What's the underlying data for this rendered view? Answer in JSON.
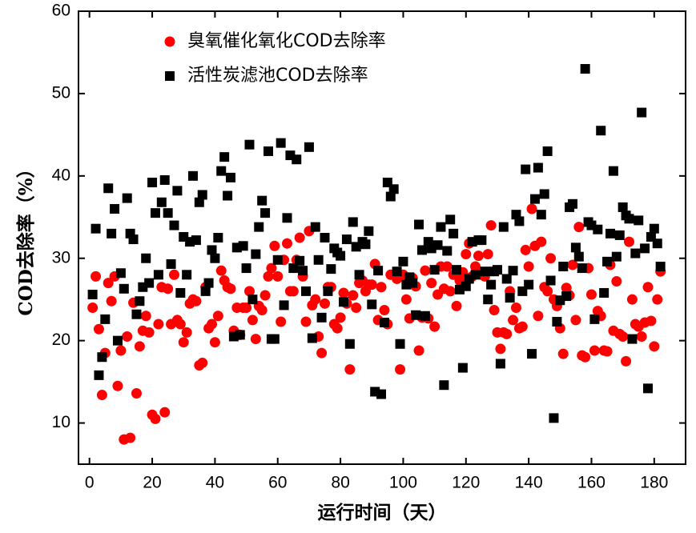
{
  "chart_data": {
    "type": "scatter",
    "x_label": "运行时间（天）",
    "y_label": "COD去除率（%）",
    "xlim": [
      -3.5,
      190
    ],
    "ylim": [
      5,
      60
    ],
    "xticks": [
      0,
      20,
      40,
      60,
      80,
      100,
      120,
      140,
      160,
      180
    ],
    "yticks": [
      10,
      20,
      30,
      40,
      50,
      60
    ],
    "legend": "upper left",
    "x": [
      1,
      2,
      3,
      4,
      5,
      6,
      7,
      8,
      9,
      10,
      11,
      12,
      13,
      14,
      15,
      16,
      17,
      18,
      19,
      20,
      21,
      22,
      23,
      24,
      25,
      26,
      27,
      28,
      29,
      30,
      31,
      32,
      33,
      34,
      35,
      36,
      37,
      38,
      39,
      40,
      41,
      42,
      43,
      44,
      45,
      46,
      47,
      48,
      49,
      50,
      51,
      52,
      53,
      54,
      55,
      56,
      57,
      58,
      59,
      60,
      61,
      62,
      63,
      64,
      65,
      66,
      67,
      68,
      69,
      70,
      71,
      72,
      73,
      74,
      75,
      76,
      77,
      78,
      79,
      80,
      81,
      82,
      83,
      84,
      85,
      86,
      87,
      88,
      89,
      90,
      91,
      92,
      93,
      94,
      95,
      96,
      97,
      98,
      99,
      100,
      101,
      102,
      103,
      104,
      105,
      106,
      107,
      108,
      109,
      110,
      111,
      112,
      113,
      114,
      115,
      116,
      117,
      118,
      119,
      120,
      121,
      122,
      123,
      124,
      125,
      126,
      127,
      128,
      129,
      130,
      131,
      132,
      133,
      134,
      135,
      136,
      137,
      138,
      139,
      140,
      141,
      142,
      143,
      144,
      145,
      146,
      147,
      148,
      149,
      150,
      151,
      152,
      153,
      154,
      155,
      156,
      157,
      158,
      159,
      160,
      161,
      162,
      163,
      164,
      165,
      166,
      167,
      168,
      169,
      170,
      171,
      172,
      173,
      174,
      175,
      176,
      177,
      178,
      179,
      180,
      181,
      182
    ],
    "series": [
      {
        "name": "臭氧催化氧化COD去除率",
        "color": "#ff0000",
        "marker": "circle",
        "values": [
          24,
          27.8,
          21.4,
          13.4,
          18.5,
          27,
          24.8,
          27.8,
          14.5,
          18.8,
          8,
          20.5,
          8.2,
          24.6,
          13.6,
          19.3,
          21.2,
          23,
          21,
          11,
          10.5,
          22,
          26.5,
          11.3,
          26.3,
          22,
          28,
          22.5,
          22,
          19.8,
          21,
          24.5,
          25,
          24.8,
          17,
          17.3,
          26.5,
          21.5,
          22,
          19.8,
          23,
          28.5,
          27.3,
          26.5,
          26.3,
          21.2,
          24,
          20.7,
          24,
          24,
          26,
          22.5,
          20.2,
          24.2,
          23.7,
          25.5,
          27.8,
          28.8,
          31.5,
          27.8,
          22.3,
          29.8,
          31.8,
          26,
          26,
          29.8,
          32.5,
          27.8,
          22.3,
          33.3,
          24.3,
          25,
          20.5,
          18.5,
          24.5,
          26.5,
          26.5,
          22,
          21.5,
          22.8,
          25.8,
          24.5,
          16.5,
          25.5,
          24,
          27,
          27.3,
          26,
          26.8,
          26.8,
          29.3,
          22.5,
          26.5,
          23.7,
          22,
          28,
          28,
          27.5,
          16.5,
          28,
          25,
          22.7,
          27.6,
          26.6,
          18.8,
          22.8,
          28.5,
          22.7,
          27,
          21.7,
          25.6,
          29,
          26.3,
          29,
          26,
          28,
          24.2,
          27.3,
          28.3,
          30.5,
          31.8,
          27.8,
          29,
          30.3,
          28,
          27.8,
          30.5,
          34,
          23.7,
          21,
          19,
          21,
          20.8,
          26,
          22.5,
          24,
          21.5,
          21.7,
          31,
          29,
          36,
          31.5,
          23,
          32,
          26.5,
          26,
          30,
          25,
          24.2,
          21.5,
          18.4,
          26.4,
          25.5,
          29.2,
          22.5,
          33.8,
          18.2,
          18,
          28.8,
          25.6,
          18.8,
          23.6,
          23,
          18.8,
          18.7,
          29.2,
          21.2,
          27.2,
          20.8,
          20.5,
          17.5,
          32,
          25,
          22,
          21.7,
          20.5,
          22.2,
          26.5,
          22.4,
          19.3,
          25,
          28.4
        ]
      },
      {
        "name": "活性炭滤池COD去除率",
        "color": "#000000",
        "marker": "square",
        "values": [
          25.6,
          33.6,
          15.8,
          18,
          22.6,
          38.5,
          33,
          36,
          20,
          28.2,
          26.3,
          37.3,
          33,
          32.3,
          23.2,
          24.8,
          26.5,
          30,
          27,
          39.2,
          35.5,
          28,
          36.8,
          39.5,
          35.5,
          29.3,
          34,
          38.2,
          25.8,
          32.6,
          28,
          32,
          40,
          32.2,
          36.8,
          37.7,
          26,
          27,
          31,
          30,
          32.5,
          40.6,
          42.3,
          37.6,
          39.8,
          20.5,
          31.3,
          20.7,
          31.5,
          28.8,
          43.8,
          25,
          30.5,
          33.8,
          37,
          35.5,
          43,
          20.2,
          20.2,
          29.8,
          44,
          24.3,
          34.9,
          42.5,
          28.8,
          42,
          29.7,
          28.5,
          26,
          43.5,
          20.3,
          33.8,
          29.8,
          22.8,
          32.5,
          26,
          28.7,
          31.2,
          30.7,
          30.3,
          24.7,
          32.3,
          19.6,
          34.4,
          31.4,
          28,
          32,
          31.7,
          33.3,
          24.4,
          13.8,
          28.5,
          13.5,
          22.2,
          39.2,
          37.5,
          38.4,
          28.4,
          19.6,
          29.6,
          26.8,
          27.7,
          27,
          23.1,
          34.1,
          31,
          23,
          32,
          31.2,
          28.6,
          31.6,
          33.8,
          14.6,
          30.9,
          34.7,
          33,
          28.6,
          26.2,
          16.7,
          26.6,
          27.5,
          32,
          28,
          32.2,
          32.2,
          28.4,
          25,
          26.8,
          28.4,
          28.6,
          17.2,
          33.8,
          27.5,
          25.2,
          28.5,
          35.3,
          34.5,
          26,
          40.8,
          26.8,
          18.4,
          37.2,
          41,
          35.3,
          37.8,
          43,
          27.3,
          10.6,
          22.3,
          24.9,
          29,
          25.4,
          36.2,
          36.6,
          31.3,
          30.2,
          28.8,
          53,
          34.4,
          34,
          22.6,
          33.5,
          45.5,
          25.8,
          29.6,
          33,
          40.6,
          30.2,
          32.8,
          36.2,
          35.2,
          34.8,
          20.2,
          30.6,
          34.6,
          47.7,
          31.2,
          14.2,
          32.6,
          33.6,
          31.8,
          29
        ]
      }
    ]
  }
}
